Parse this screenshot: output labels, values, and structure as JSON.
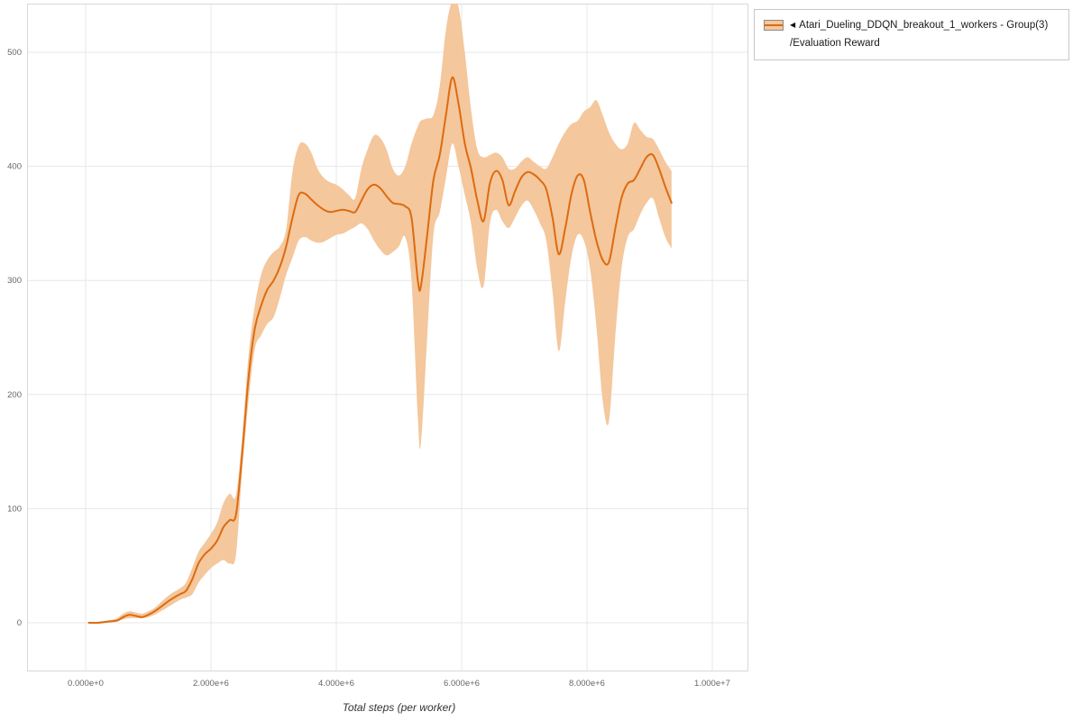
{
  "legend": {
    "marker": "◀",
    "series_name": "Atari_Dueling_DDQN_breakout_1_workers - Group(3)",
    "metric_name": "/Evaluation Reward"
  },
  "chart_data": {
    "type": "line",
    "title": "",
    "xlabel": "Total steps (per worker)",
    "ylabel": "",
    "grid": true,
    "legend_position": "top-right",
    "x_range": [
      0,
      10000000
    ],
    "y_anchor_ticks": [
      0,
      500
    ],
    "x_ticks": {
      "values": [
        0,
        2000000,
        4000000,
        6000000,
        8000000,
        10000000
      ],
      "labels": [
        "0.000e+0",
        "2.000e+6",
        "4.000e+6",
        "6.000e+6",
        "8.000e+6",
        "1.000e+7"
      ]
    },
    "y_ticks": {
      "values": [
        0,
        100,
        200,
        300,
        400,
        500
      ],
      "labels": [
        "0",
        "100",
        "200",
        "300",
        "400",
        "500"
      ]
    },
    "colors": {
      "line": "#dc6b11",
      "band": "#f4c79c",
      "grid": "#e7e7e7",
      "border": "#d8d8d8",
      "tick_text": "#666666",
      "axis_label": "#333333"
    },
    "series": [
      {
        "name": "Atari_Dueling_DDQN_breakout_1_workers - Group(3)/Evaluation Reward",
        "x": [
          50000,
          200000,
          350000,
          500000,
          600000,
          700000,
          800000,
          900000,
          1000000,
          1100000,
          1200000,
          1350000,
          1500000,
          1600000,
          1700000,
          1800000,
          1900000,
          2000000,
          2100000,
          2200000,
          2300000,
          2400000,
          2500000,
          2600000,
          2700000,
          2800000,
          2900000,
          3000000,
          3100000,
          3200000,
          3300000,
          3400000,
          3500000,
          3600000,
          3700000,
          3800000,
          3900000,
          4000000,
          4100000,
          4200000,
          4300000,
          4400000,
          4500000,
          4600000,
          4700000,
          4800000,
          4900000,
          5000000,
          5100000,
          5200000,
          5300000,
          5350000,
          5450000,
          5550000,
          5650000,
          5750000,
          5850000,
          5950000,
          6050000,
          6150000,
          6250000,
          6350000,
          6450000,
          6550000,
          6650000,
          6750000,
          6850000,
          6950000,
          7050000,
          7150000,
          7250000,
          7350000,
          7450000,
          7550000,
          7650000,
          7750000,
          7850000,
          7950000,
          8050000,
          8150000,
          8250000,
          8350000,
          8450000,
          8550000,
          8650000,
          8750000,
          8850000,
          8950000,
          9050000,
          9150000,
          9250000,
          9350000
        ],
        "mean": [
          0,
          0,
          1,
          2,
          5,
          7,
          6,
          5,
          7,
          10,
          14,
          20,
          25,
          28,
          38,
          52,
          60,
          65,
          72,
          84,
          90,
          95,
          150,
          215,
          258,
          278,
          292,
          300,
          312,
          330,
          355,
          375,
          376,
          371,
          366,
          362,
          360,
          361,
          362,
          361,
          360,
          370,
          380,
          384,
          381,
          374,
          368,
          367,
          365,
          355,
          300,
          295,
          340,
          388,
          410,
          445,
          478,
          455,
          420,
          398,
          370,
          352,
          385,
          396,
          388,
          366,
          378,
          390,
          395,
          393,
          388,
          380,
          355,
          323,
          345,
          375,
          392,
          388,
          360,
          335,
          318,
          316,
          345,
          372,
          385,
          388,
          398,
          408,
          410,
          398,
          382,
          368
        ],
        "lower": [
          0,
          0,
          0,
          1,
          3,
          4,
          4,
          4,
          5,
          7,
          10,
          15,
          20,
          22,
          25,
          35,
          42,
          48,
          52,
          55,
          52,
          60,
          135,
          195,
          240,
          252,
          262,
          268,
          285,
          305,
          320,
          335,
          338,
          335,
          333,
          334,
          337,
          340,
          341,
          344,
          347,
          350,
          345,
          335,
          327,
          322,
          325,
          330,
          338,
          300,
          180,
          157,
          250,
          340,
          360,
          390,
          420,
          400,
          375,
          350,
          310,
          295,
          350,
          362,
          352,
          346,
          355,
          365,
          370,
          362,
          350,
          335,
          290,
          238,
          280,
          320,
          340,
          335,
          310,
          260,
          195,
          176,
          250,
          310,
          338,
          345,
          358,
          368,
          372,
          355,
          338,
          328
        ],
        "upper": [
          0,
          1,
          2,
          4,
          8,
          10,
          9,
          8,
          10,
          13,
          18,
          25,
          30,
          35,
          48,
          62,
          70,
          78,
          88,
          105,
          113,
          112,
          165,
          235,
          278,
          305,
          318,
          325,
          330,
          345,
          395,
          418,
          420,
          412,
          398,
          390,
          386,
          384,
          380,
          375,
          372,
          398,
          415,
          427,
          425,
          415,
          398,
          392,
          400,
          420,
          435,
          440,
          442,
          445,
          470,
          520,
          545,
          540,
          500,
          450,
          415,
          408,
          410,
          412,
          408,
          398,
          398,
          404,
          408,
          404,
          400,
          398,
          408,
          420,
          430,
          437,
          440,
          448,
          452,
          458,
          445,
          430,
          420,
          415,
          420,
          438,
          432,
          426,
          424,
          415,
          404,
          396
        ]
      }
    ]
  }
}
